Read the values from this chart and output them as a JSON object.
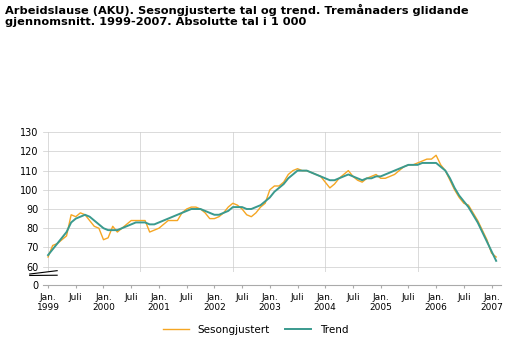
{
  "title": "Arbeidslause (AKU). Sesongjusterte tal og trend. Tremånaders glidande\ngjennomsnitt. 1999-2007. Absolutte tal i 1 000",
  "sesongjustert_color": "#f5a623",
  "trend_color": "#3a9a8e",
  "background_color": "#ffffff",
  "grid_color": "#cccccc",
  "ylim_main": [
    57,
    130
  ],
  "ylim_break": [
    0,
    5
  ],
  "yticks": [
    60,
    70,
    80,
    90,
    100,
    110,
    120,
    130
  ],
  "ytick_break": [
    0
  ],
  "legend_sesongjustert": "Sesongjustert",
  "legend_trend": "Trend",
  "sesongjustert": [
    65,
    71,
    72,
    74,
    76,
    87,
    86,
    88,
    87,
    84,
    81,
    80,
    74,
    75,
    81,
    78,
    80,
    82,
    84,
    84,
    84,
    84,
    78,
    79,
    80,
    82,
    84,
    84,
    84,
    88,
    90,
    91,
    91,
    90,
    88,
    85,
    85,
    86,
    88,
    91,
    93,
    92,
    90,
    87,
    86,
    88,
    91,
    93,
    100,
    102,
    102,
    104,
    108,
    110,
    111,
    110,
    110,
    109,
    108,
    107,
    104,
    101,
    103,
    106,
    108,
    110,
    107,
    105,
    104,
    106,
    107,
    108,
    106,
    106,
    107,
    108,
    110,
    112,
    113,
    113,
    114,
    115,
    116,
    116,
    118,
    113,
    110,
    105,
    100,
    96,
    93,
    92,
    88,
    84,
    79,
    74,
    67,
    65
  ],
  "trend": [
    66,
    69,
    72,
    75,
    78,
    83,
    85,
    86,
    87,
    86,
    84,
    82,
    80,
    79,
    79,
    79,
    80,
    81,
    82,
    83,
    83,
    83,
    82,
    82,
    83,
    84,
    85,
    86,
    87,
    88,
    89,
    90,
    90,
    90,
    89,
    88,
    87,
    87,
    88,
    89,
    91,
    91,
    91,
    90,
    90,
    91,
    92,
    94,
    96,
    99,
    101,
    103,
    106,
    108,
    110,
    110,
    110,
    109,
    108,
    107,
    106,
    105,
    105,
    106,
    107,
    108,
    107,
    106,
    105,
    106,
    106,
    107,
    107,
    108,
    109,
    110,
    111,
    112,
    113,
    113,
    113,
    114,
    114,
    114,
    114,
    112,
    110,
    106,
    101,
    97,
    94,
    91,
    87,
    83,
    78,
    73,
    68,
    63
  ],
  "n_points": 98,
  "xtick_positions": [
    0,
    6,
    12,
    18,
    24,
    30,
    36,
    42,
    48,
    54,
    60,
    66,
    72,
    78,
    84,
    90,
    96
  ],
  "xtick_labels": [
    "Jan.\n1999",
    "Juli",
    "Jan.\n2000",
    "Juli",
    "Jan.\n2001",
    "Juli",
    "Jan.\n2002",
    "Juli",
    "Jan.\n2003",
    "Juli",
    "Jan.\n2004",
    "Juli",
    "Jan.\n2005",
    "Juli",
    "Jan.\n2006",
    "Juli",
    "Jan.\n2007"
  ]
}
